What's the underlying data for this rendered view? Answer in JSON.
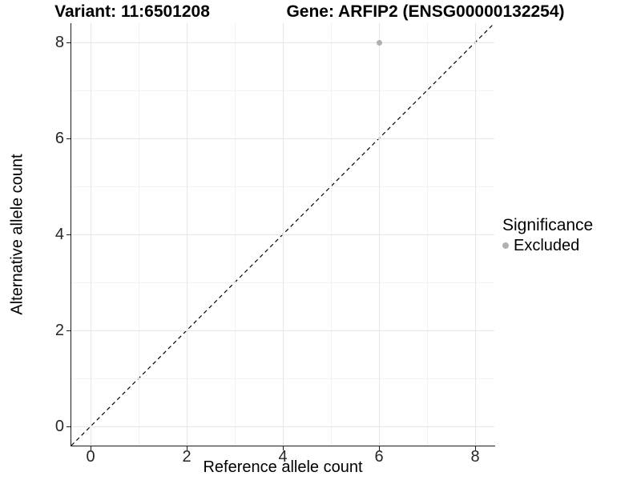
{
  "header": {
    "variant_title": "Variant: 11:6501208",
    "gene_title": "Gene: ARFIP2 (ENSG00000132254)"
  },
  "colors": {
    "background": "#ffffff",
    "grid_major": "#e6e6e6",
    "grid_minor": "#f2f2f2",
    "axis_line": "#1a1a1a",
    "reference_line": "#000000",
    "excluded_point": "#b0b0b0"
  },
  "chart_data": {
    "type": "scatter",
    "title_left": "Variant: 11:6501208",
    "title_right": "Gene: ARFIP2 (ENSG00000132254)",
    "xlabel": "Reference allele count",
    "ylabel": "Alternative allele count",
    "xlim": [
      -0.4,
      8.4
    ],
    "ylim": [
      -0.4,
      8.4
    ],
    "x_ticks": [
      0,
      2,
      4,
      6,
      8
    ],
    "y_ticks": [
      0,
      2,
      4,
      6,
      8
    ],
    "x_minor_ticks": [
      1,
      3,
      5,
      7
    ],
    "y_minor_ticks": [
      1,
      3,
      5,
      7
    ],
    "grid": "major and minor, light gray on white",
    "reference_line": {
      "equation": "y = x",
      "style": "dashed",
      "color": "#000000"
    },
    "series": [
      {
        "name": "Excluded",
        "color": "#b0b0b0",
        "points": [
          {
            "x": 6,
            "y": 8
          }
        ]
      }
    ],
    "legend": {
      "title": "Significance",
      "position": "right",
      "entries": [
        {
          "label": "Excluded",
          "color": "#b0b0b0"
        }
      ]
    }
  }
}
